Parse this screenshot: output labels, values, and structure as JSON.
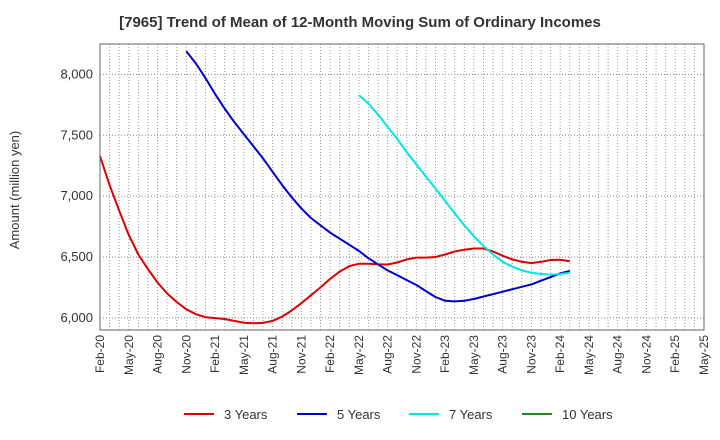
{
  "chart_data": {
    "type": "line",
    "title": "[7965]  Trend of Mean of 12-Month Moving Sum of Ordinary Incomes",
    "xlabel": "",
    "ylabel": "Amount (million yen)",
    "ylim": [
      5900,
      8250
    ],
    "y_ticks": [
      6000,
      6500,
      7000,
      7500,
      8000
    ],
    "y_tick_labels": [
      "6,000",
      "6,500",
      "7,000",
      "7,500",
      "8,000"
    ],
    "x_tick_labels": [
      "Feb-20",
      "May-20",
      "Aug-20",
      "Nov-20",
      "Feb-21",
      "May-21",
      "Aug-21",
      "Nov-21",
      "Feb-22",
      "May-22",
      "Aug-22",
      "Nov-22",
      "Feb-23",
      "May-23",
      "Aug-23",
      "Nov-23",
      "Feb-24",
      "May-24",
      "Aug-24",
      "Nov-24",
      "Feb-25",
      "May-25"
    ],
    "grid": true,
    "legend_position": "bottom",
    "series": [
      {
        "name": "3 Years",
        "color": "#dd0000",
        "points": [
          [
            0,
            7330
          ],
          [
            1,
            7090
          ],
          [
            2,
            6880
          ],
          [
            3,
            6680
          ],
          [
            4,
            6520
          ],
          [
            5,
            6400
          ],
          [
            6,
            6290
          ],
          [
            7,
            6200
          ],
          [
            8,
            6130
          ],
          [
            9,
            6070
          ],
          [
            10,
            6030
          ],
          [
            11,
            6005
          ],
          [
            12,
            5998
          ],
          [
            13,
            5990
          ],
          [
            14,
            5975
          ],
          [
            15,
            5960
          ],
          [
            16,
            5955
          ],
          [
            17,
            5958
          ],
          [
            18,
            5975
          ],
          [
            19,
            6010
          ],
          [
            20,
            6060
          ],
          [
            21,
            6120
          ],
          [
            22,
            6185
          ],
          [
            23,
            6250
          ],
          [
            24,
            6320
          ],
          [
            25,
            6380
          ],
          [
            26,
            6425
          ],
          [
            27,
            6445
          ],
          [
            28,
            6445
          ],
          [
            29,
            6440
          ],
          [
            30,
            6438
          ],
          [
            31,
            6455
          ],
          [
            32,
            6480
          ],
          [
            33,
            6495
          ],
          [
            34,
            6495
          ],
          [
            35,
            6500
          ],
          [
            36,
            6520
          ],
          [
            37,
            6545
          ],
          [
            38,
            6560
          ],
          [
            39,
            6570
          ],
          [
            40,
            6570
          ],
          [
            41,
            6545
          ],
          [
            42,
            6510
          ],
          [
            43,
            6480
          ],
          [
            44,
            6460
          ],
          [
            45,
            6450
          ],
          [
            46,
            6460
          ],
          [
            47,
            6475
          ],
          [
            48,
            6478
          ],
          [
            49,
            6465
          ]
        ]
      },
      {
        "name": "5 Years",
        "color": "#0000cc",
        "points": [
          [
            9,
            8190
          ],
          [
            10,
            8090
          ],
          [
            11,
            7970
          ],
          [
            12,
            7840
          ],
          [
            13,
            7720
          ],
          [
            14,
            7610
          ],
          [
            15,
            7510
          ],
          [
            16,
            7410
          ],
          [
            17,
            7310
          ],
          [
            18,
            7200
          ],
          [
            19,
            7090
          ],
          [
            20,
            6990
          ],
          [
            21,
            6900
          ],
          [
            22,
            6820
          ],
          [
            23,
            6760
          ],
          [
            24,
            6700
          ],
          [
            25,
            6650
          ],
          [
            26,
            6600
          ],
          [
            27,
            6550
          ],
          [
            28,
            6490
          ],
          [
            29,
            6440
          ],
          [
            30,
            6390
          ],
          [
            31,
            6350
          ],
          [
            32,
            6310
          ],
          [
            33,
            6270
          ],
          [
            34,
            6220
          ],
          [
            35,
            6170
          ],
          [
            36,
            6140
          ],
          [
            37,
            6135
          ],
          [
            38,
            6140
          ],
          [
            39,
            6155
          ],
          [
            40,
            6175
          ],
          [
            41,
            6195
          ],
          [
            42,
            6215
          ],
          [
            43,
            6235
          ],
          [
            44,
            6255
          ],
          [
            45,
            6275
          ],
          [
            46,
            6305
          ],
          [
            47,
            6335
          ],
          [
            48,
            6365
          ],
          [
            49,
            6385
          ]
        ]
      },
      {
        "name": "7 Years",
        "color": "#00e5e5",
        "points": [
          [
            27,
            7830
          ],
          [
            28,
            7760
          ],
          [
            29,
            7670
          ],
          [
            30,
            7570
          ],
          [
            31,
            7470
          ],
          [
            32,
            7360
          ],
          [
            33,
            7260
          ],
          [
            34,
            7160
          ],
          [
            35,
            7060
          ],
          [
            36,
            6960
          ],
          [
            37,
            6860
          ],
          [
            38,
            6760
          ],
          [
            39,
            6670
          ],
          [
            40,
            6590
          ],
          [
            41,
            6520
          ],
          [
            42,
            6460
          ],
          [
            43,
            6420
          ],
          [
            44,
            6390
          ],
          [
            45,
            6370
          ],
          [
            46,
            6360
          ],
          [
            47,
            6355
          ],
          [
            48,
            6360
          ],
          [
            49,
            6370
          ]
        ]
      },
      {
        "name": "10 Years",
        "color": "#228b22",
        "points": []
      }
    ]
  }
}
